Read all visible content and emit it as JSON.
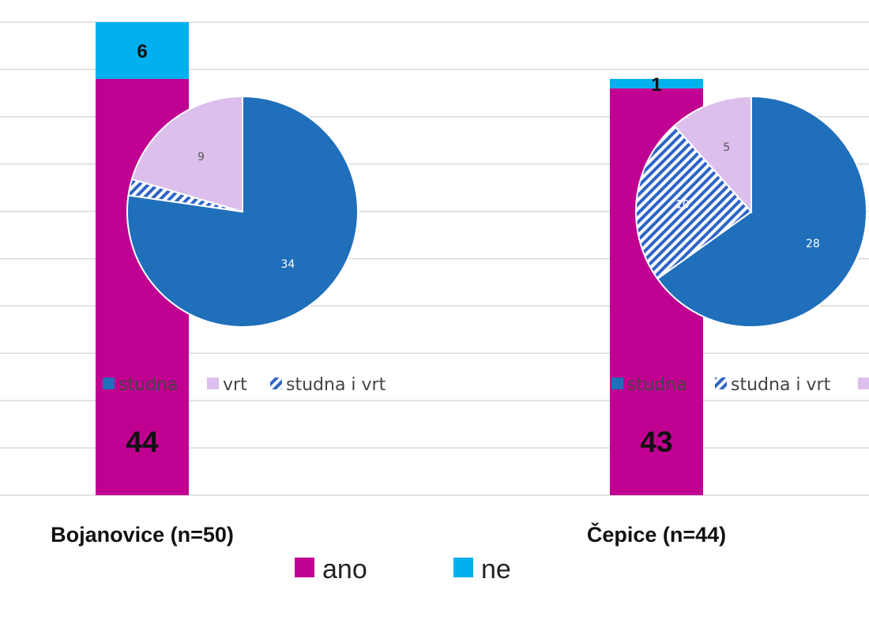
{
  "colors": {
    "ano": "#c00090",
    "ne": "#00b0ef",
    "studna": "#1f6fbb",
    "vrt": "#dcbfec",
    "studna_i_vrt": "#2e64c6",
    "gridline": "#d9d9d9"
  },
  "chart_data": {
    "type": "bar",
    "stacked": true,
    "categories": [
      "Bojanovice (n=50)",
      "Čepice (n=44)"
    ],
    "series": [
      {
        "name": "ano",
        "values": [
          44,
          43
        ]
      },
      {
        "name": "ne",
        "values": [
          6,
          1
        ]
      }
    ],
    "ylim": [
      0,
      50
    ],
    "grid": true,
    "legend": {
      "position": "bottom",
      "items": [
        "ano",
        "ne"
      ]
    },
    "insets": [
      {
        "type": "pie",
        "category": "Bojanovice (n=50)",
        "slices": [
          {
            "name": "studna",
            "value": 34,
            "label": "34",
            "pattern": "solid"
          },
          {
            "name": "studna i vrt",
            "value": 1,
            "label": "",
            "pattern": "hatch"
          },
          {
            "name": "vrt",
            "value": 9,
            "label": "9",
            "pattern": "solid"
          }
        ],
        "legend": [
          "studna",
          "vrt",
          "studna i vrt"
        ]
      },
      {
        "type": "pie",
        "category": "Čepice (n=44)",
        "slices": [
          {
            "name": "studna",
            "value": 28,
            "label": "28",
            "pattern": "solid"
          },
          {
            "name": "studna i vrt",
            "value": 10,
            "label": "10",
            "pattern": "hatch"
          },
          {
            "name": "vrt",
            "value": 5,
            "label": "5",
            "pattern": "solid"
          }
        ],
        "legend": [
          "studna",
          "studna i vrt",
          "vrt"
        ]
      }
    ]
  }
}
